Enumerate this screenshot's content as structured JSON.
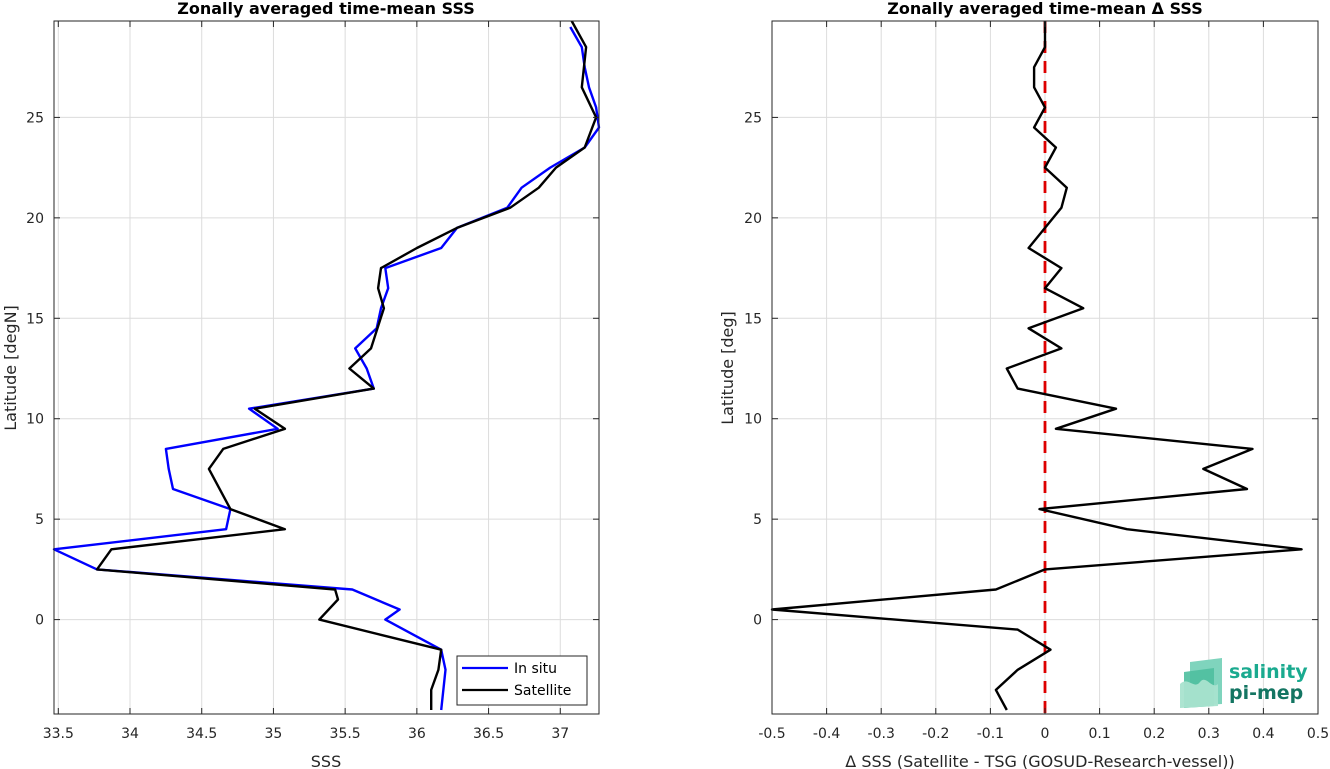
{
  "chart_data": [
    {
      "type": "line",
      "title": "Zonally averaged time-mean SSS",
      "xlabel": "SSS",
      "ylabel": "Latitude [degN]",
      "xlim": [
        33.47,
        37.27
      ],
      "ylim": [
        -4.7,
        29.8
      ],
      "xticks": [
        "33.5",
        "34",
        "34.5",
        "35",
        "35.5",
        "36",
        "36.5",
        "37"
      ],
      "yticks": [
        "0",
        "5",
        "10",
        "15",
        "20",
        "25"
      ],
      "grid": true,
      "legend_position": "bottom-right",
      "series": [
        {
          "name": "In situ",
          "color": "#0000ff",
          "points": [
            [
              36.17,
              -4.5
            ],
            [
              36.2,
              -2.5
            ],
            [
              36.17,
              -1.5
            ],
            [
              35.78,
              0
            ],
            [
              35.88,
              0.5
            ],
            [
              35.55,
              1.5
            ],
            [
              33.77,
              2.5
            ],
            [
              33.47,
              3.5
            ],
            [
              34.67,
              4.5
            ],
            [
              34.7,
              5.5
            ],
            [
              34.3,
              6.5
            ],
            [
              34.27,
              7.5
            ],
            [
              34.25,
              8.5
            ],
            [
              35.03,
              9.5
            ],
            [
              34.83,
              10.5
            ],
            [
              35.7,
              11.5
            ],
            [
              35.65,
              12.5
            ],
            [
              35.57,
              13.5
            ],
            [
              35.72,
              14.5
            ],
            [
              35.75,
              15.5
            ],
            [
              35.8,
              16.5
            ],
            [
              35.78,
              17.5
            ],
            [
              36.17,
              18.5
            ],
            [
              36.28,
              19.5
            ],
            [
              36.63,
              20.5
            ],
            [
              36.73,
              21.5
            ],
            [
              36.93,
              22.5
            ],
            [
              37.17,
              23.5
            ],
            [
              37.27,
              24.5
            ],
            [
              37.25,
              25.5
            ],
            [
              37.2,
              26.5
            ],
            [
              37.17,
              27.5
            ],
            [
              37.15,
              28.5
            ],
            [
              37.07,
              29.5
            ]
          ]
        },
        {
          "name": "Satellite",
          "color": "#000000",
          "points": [
            [
              36.1,
              -4.5
            ],
            [
              36.1,
              -3.5
            ],
            [
              36.15,
              -2.5
            ],
            [
              36.17,
              -1.5
            ],
            [
              35.32,
              0
            ],
            [
              35.45,
              1
            ],
            [
              35.43,
              1.5
            ],
            [
              33.77,
              2.5
            ],
            [
              33.87,
              3.5
            ],
            [
              35.08,
              4.5
            ],
            [
              34.7,
              5.5
            ],
            [
              34.55,
              7.5
            ],
            [
              34.65,
              8.5
            ],
            [
              35.08,
              9.5
            ],
            [
              34.87,
              10.5
            ],
            [
              35.7,
              11.5
            ],
            [
              35.53,
              12.5
            ],
            [
              35.68,
              13.5
            ],
            [
              35.77,
              15.5
            ],
            [
              35.73,
              16.5
            ],
            [
              35.75,
              17.5
            ],
            [
              36.0,
              18.5
            ],
            [
              36.28,
              19.5
            ],
            [
              36.65,
              20.5
            ],
            [
              36.85,
              21.5
            ],
            [
              36.97,
              22.5
            ],
            [
              37.17,
              23.5
            ],
            [
              37.25,
              25
            ],
            [
              37.15,
              26.5
            ],
            [
              37.18,
              28.5
            ],
            [
              37.08,
              29.8
            ]
          ]
        }
      ]
    },
    {
      "type": "line",
      "title": "Zonally averaged time-mean Δ SSS",
      "xlabel": "Δ SSS (Satellite - TSG (GOSUD-Research-vessel))",
      "ylabel": "Latitude [deg]",
      "xlim": [
        -0.5,
        0.5
      ],
      "ylim": [
        -4.7,
        29.8
      ],
      "xticks": [
        "-0.5",
        "-0.4",
        "-0.3",
        "-0.2",
        "-0.1",
        "0",
        "0.1",
        "0.2",
        "0.3",
        "0.4",
        "0.5"
      ],
      "yticks": [
        "0",
        "5",
        "10",
        "15",
        "20",
        "25"
      ],
      "grid": true,
      "reference_line": {
        "x": 0,
        "color": "#dd0000",
        "style": "dashed"
      },
      "series": [
        {
          "color": "#000000",
          "points": [
            [
              -0.07,
              -4.5
            ],
            [
              -0.09,
              -3.5
            ],
            [
              -0.05,
              -2.5
            ],
            [
              0.01,
              -1.5
            ],
            [
              -0.05,
              -0.5
            ],
            [
              -0.5,
              0.5
            ],
            [
              -0.09,
              1.5
            ],
            [
              0.0,
              2.5
            ],
            [
              0.47,
              3.5
            ],
            [
              0.15,
              4.5
            ],
            [
              -0.01,
              5.5
            ],
            [
              0.37,
              6.5
            ],
            [
              0.29,
              7.5
            ],
            [
              0.38,
              8.5
            ],
            [
              0.02,
              9.5
            ],
            [
              0.13,
              10.5
            ],
            [
              -0.05,
              11.5
            ],
            [
              -0.07,
              12.5
            ],
            [
              0.03,
              13.5
            ],
            [
              -0.03,
              14.5
            ],
            [
              0.07,
              15.5
            ],
            [
              0.0,
              16.5
            ],
            [
              0.03,
              17.5
            ],
            [
              -0.03,
              18.5
            ],
            [
              0.0,
              19.5
            ],
            [
              0.03,
              20.5
            ],
            [
              0.04,
              21.5
            ],
            [
              0.0,
              22.5
            ],
            [
              0.02,
              23.5
            ],
            [
              -0.02,
              24.5
            ],
            [
              0.0,
              25.5
            ],
            [
              -0.02,
              26.5
            ],
            [
              -0.02,
              27.5
            ],
            [
              0.0,
              28.5
            ],
            [
              0.0,
              29.8
            ]
          ]
        }
      ]
    }
  ],
  "logo": {
    "line1": "salinity",
    "line2": "pi-mep",
    "color1": "#1aaa8f",
    "color2": "#137562"
  }
}
